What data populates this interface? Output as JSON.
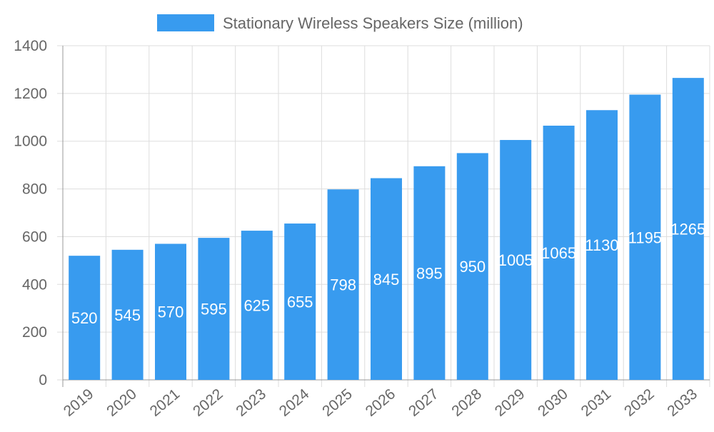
{
  "chart_data": {
    "type": "bar",
    "title": "",
    "xlabel": "",
    "ylabel": "",
    "categories": [
      "2019",
      "2020",
      "2021",
      "2022",
      "2023",
      "2024",
      "2025",
      "2026",
      "2027",
      "2028",
      "2029",
      "2030",
      "2031",
      "2032",
      "2033"
    ],
    "series": [
      {
        "name": "Stationary Wireless Speakers Size (million)",
        "values": [
          520,
          545,
          570,
          595,
          625,
          655,
          798,
          845,
          895,
          950,
          1005,
          1065,
          1130,
          1195,
          1265
        ],
        "color": "#389bef"
      }
    ],
    "ylim": [
      0,
      1400
    ],
    "yticks": [
      0,
      200,
      400,
      600,
      800,
      1000,
      1200,
      1400
    ],
    "grid": true,
    "legend_position": "top",
    "data_labels": true
  }
}
